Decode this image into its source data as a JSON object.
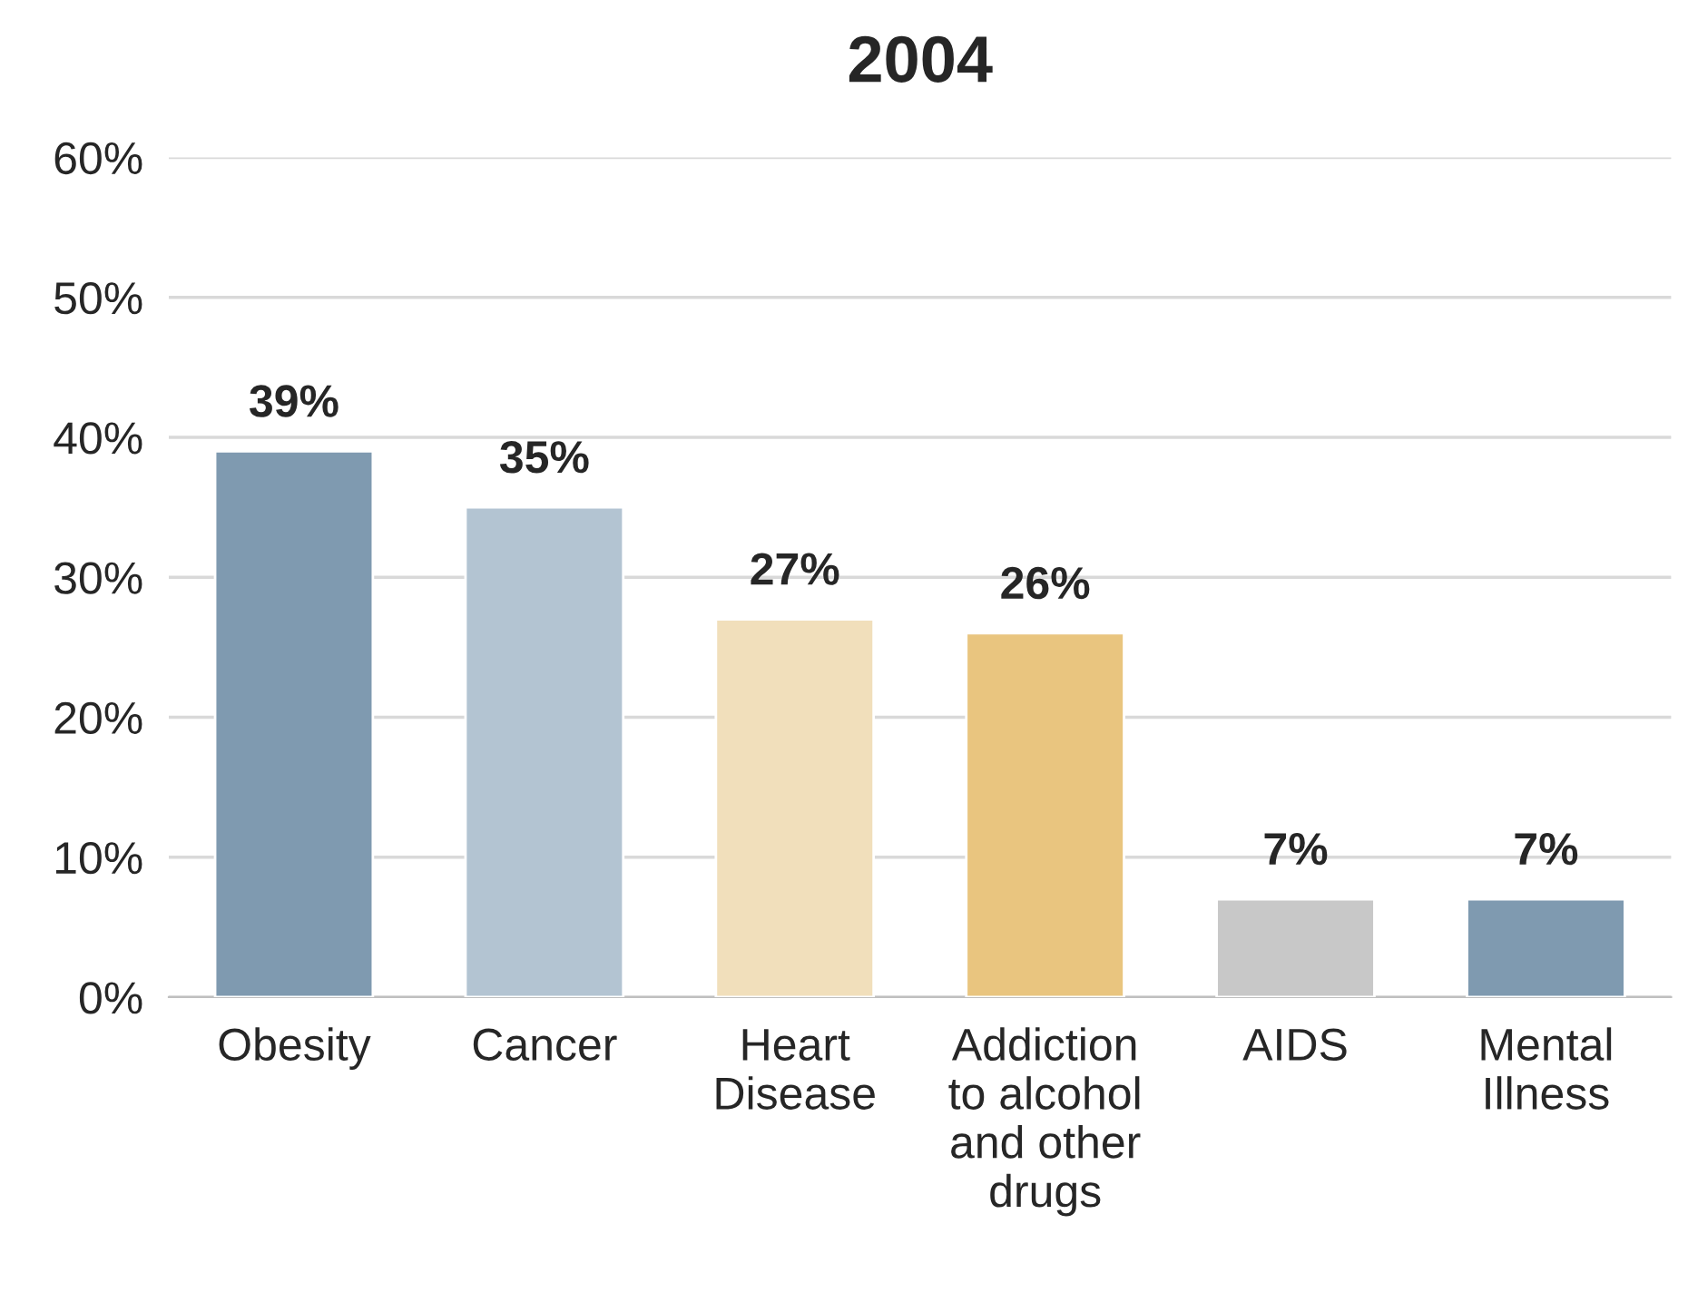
{
  "chart_data": {
    "type": "bar",
    "title": "2004",
    "categories": [
      "Obesity",
      "Cancer",
      "Heart\nDisease",
      "Addiction\nto alcohol\nand other\ndrugs",
      "AIDS",
      "Mental\nIllness"
    ],
    "values": [
      39,
      35,
      27,
      26,
      7,
      7
    ],
    "value_labels": [
      "39%",
      "35%",
      "27%",
      "26%",
      "7%",
      "7%"
    ],
    "colors": [
      "#7f9ab0",
      "#b3c4d2",
      "#f1dfbb",
      "#e9c57f",
      "#c8c8c8",
      "#7f9ab0"
    ],
    "ylim": [
      0,
      60
    ],
    "yticks": [
      {
        "value": 0,
        "label": "0%"
      },
      {
        "value": 10,
        "label": "10%"
      },
      {
        "value": 20,
        "label": "20%"
      },
      {
        "value": 30,
        "label": "30%"
      },
      {
        "value": 40,
        "label": "40%"
      },
      {
        "value": 50,
        "label": "50%"
      },
      {
        "value": 60,
        "label": "60%"
      }
    ],
    "grid": "y",
    "legend": false
  }
}
